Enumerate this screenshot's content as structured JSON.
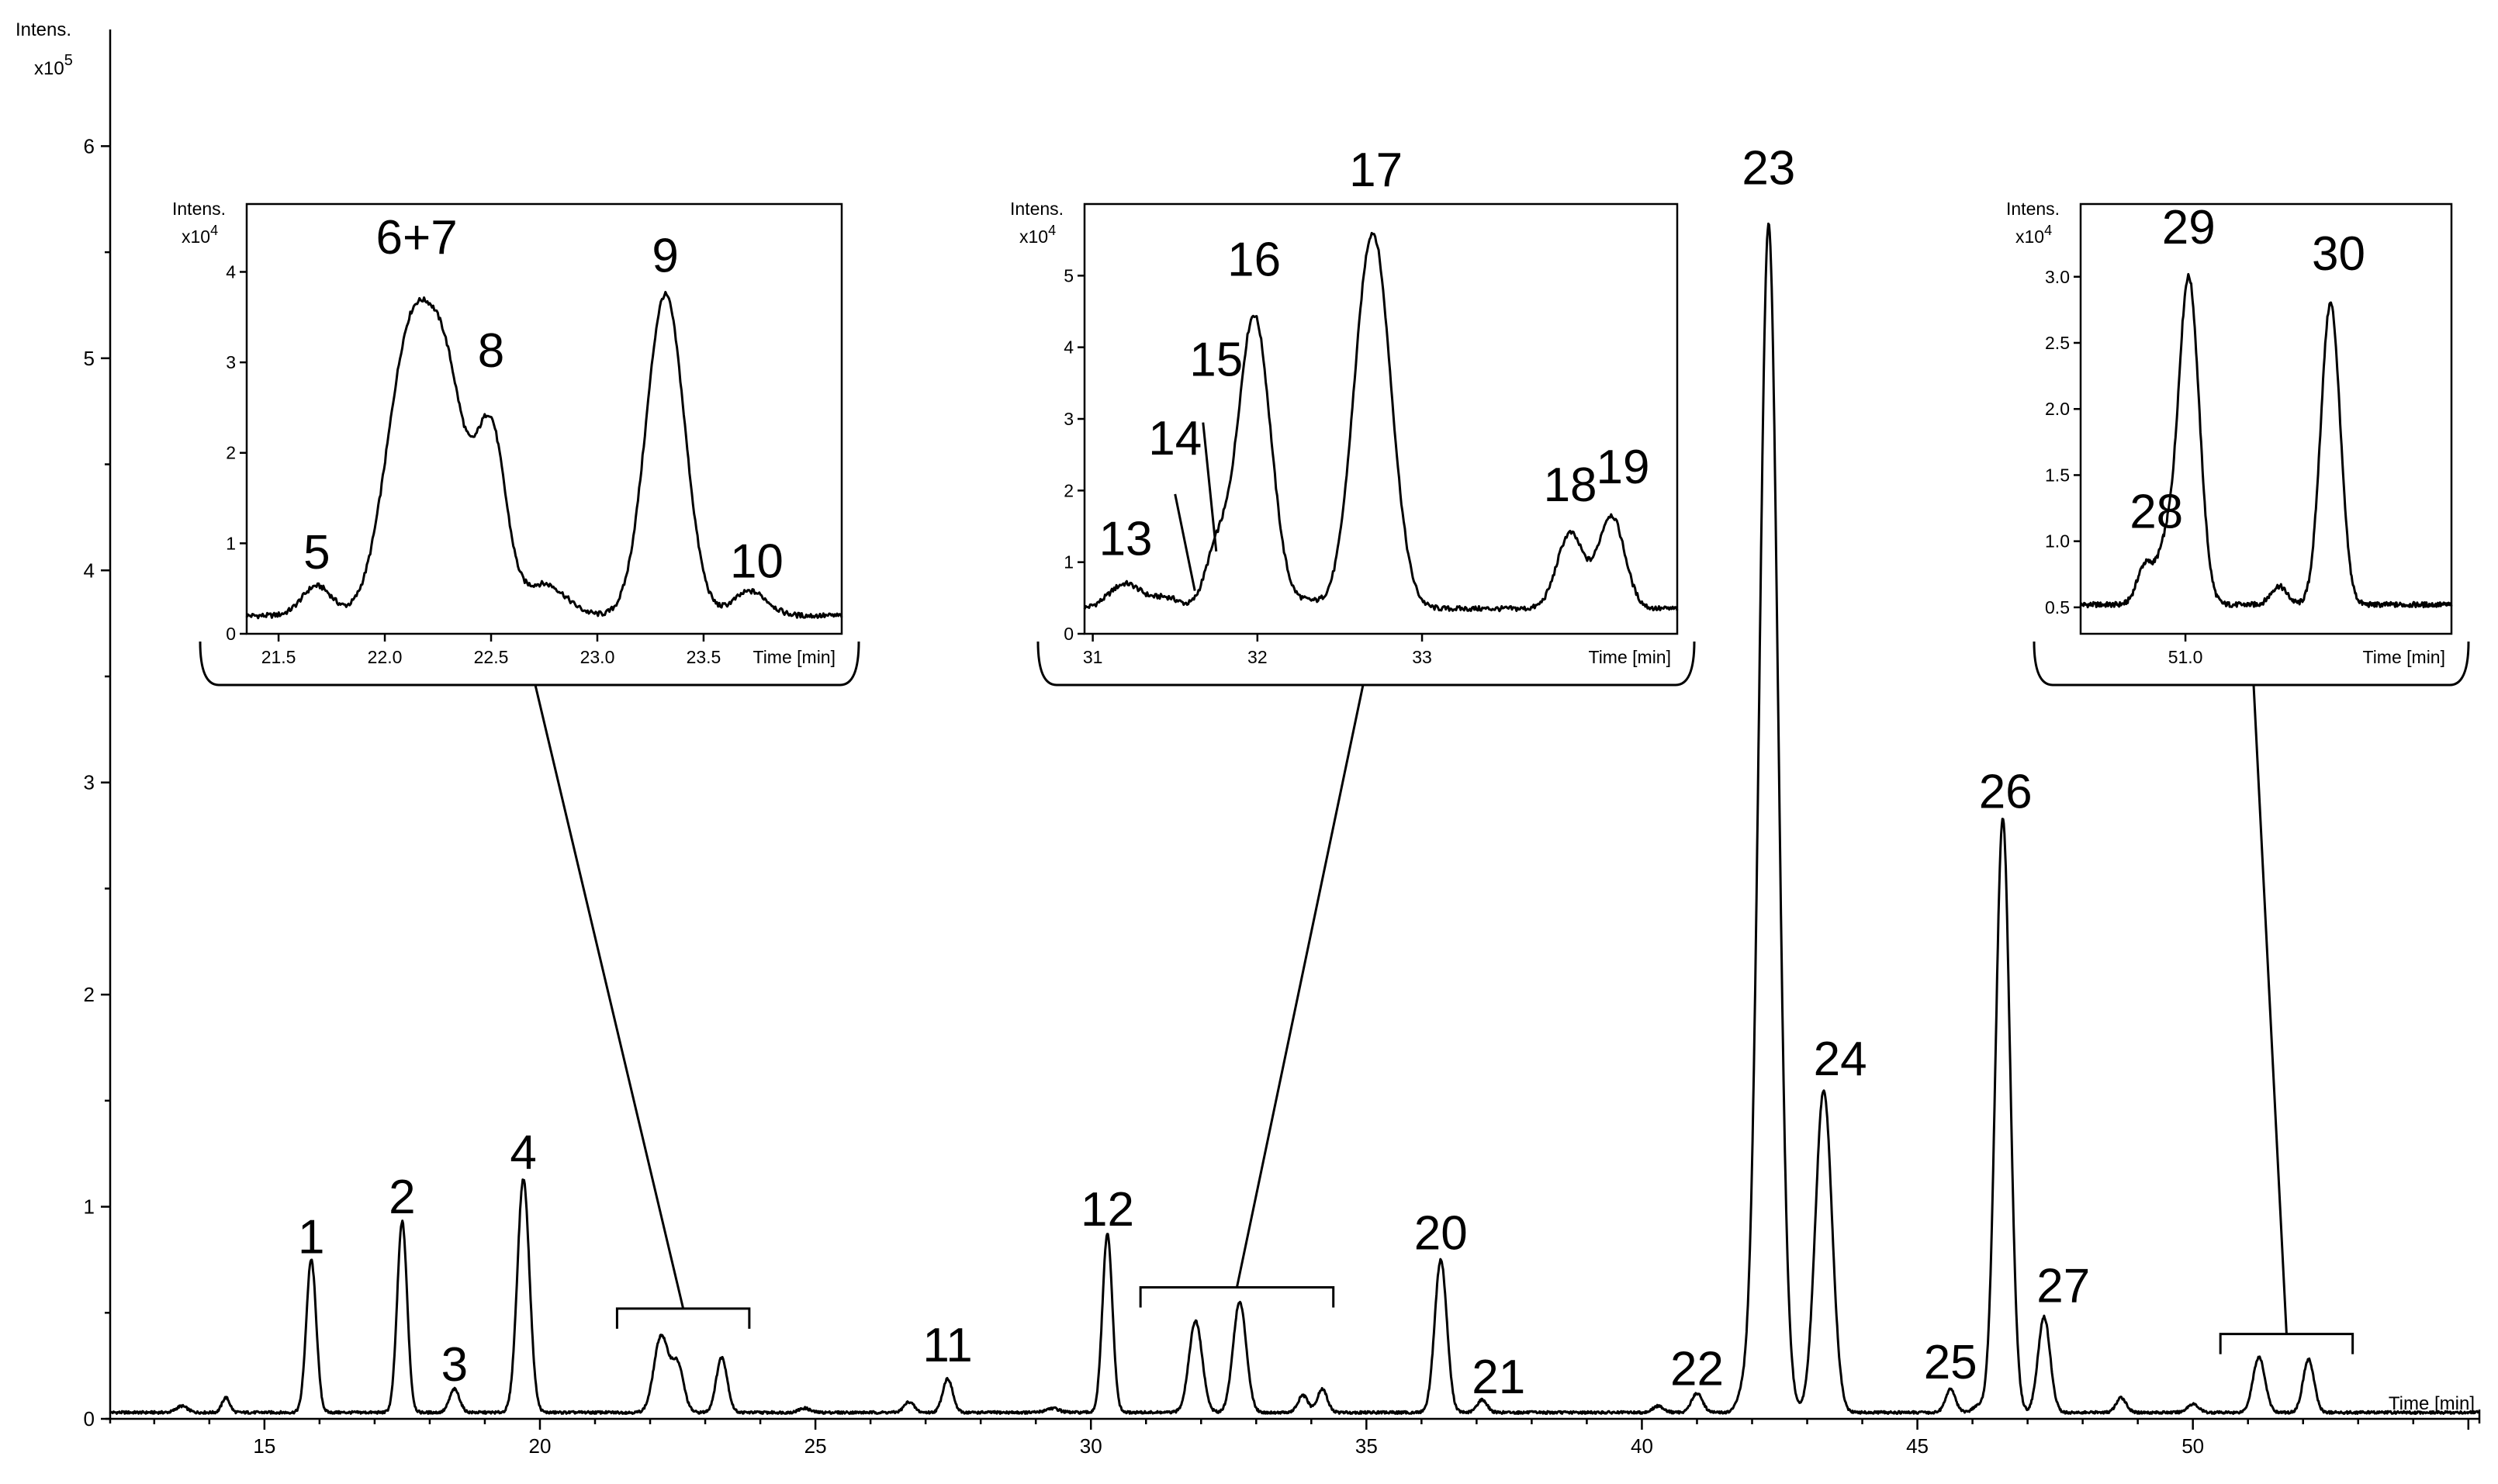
{
  "chart_data": {
    "type": "line",
    "main": {
      "ylabel": "Intens.",
      "yscale": "x10",
      "yscale_exp": "5",
      "xlabel": "Time [min]",
      "xlim": [
        12.2,
        55.2
      ],
      "ylim": [
        0,
        6.55
      ],
      "xticks": [
        "15",
        "20",
        "25",
        "30",
        "35",
        "40",
        "45",
        "50"
      ],
      "yticks": [
        "0",
        "1",
        "2",
        "3",
        "4",
        "5",
        "6"
      ],
      "baseline": 0.03,
      "peaks": [
        {
          "t": 13.5,
          "h": 0.03,
          "w": 0.1
        },
        {
          "t": 14.3,
          "h": 0.07,
          "w": 0.07
        },
        {
          "t": 15.85,
          "h": 0.72,
          "w": 0.09
        },
        {
          "t": 17.5,
          "h": 0.9,
          "w": 0.09
        },
        {
          "t": 18.45,
          "h": 0.11,
          "w": 0.09
        },
        {
          "t": 19.7,
          "h": 1.1,
          "w": 0.11
        },
        {
          "t": 22.2,
          "h": 0.36,
          "w": 0.13
        },
        {
          "t": 22.5,
          "h": 0.22,
          "w": 0.11
        },
        {
          "t": 23.3,
          "h": 0.26,
          "w": 0.1
        },
        {
          "t": 24.8,
          "h": 0.02,
          "w": 0.1
        },
        {
          "t": 26.7,
          "h": 0.05,
          "w": 0.09
        },
        {
          "t": 27.4,
          "h": 0.16,
          "w": 0.09
        },
        {
          "t": 29.3,
          "h": 0.02,
          "w": 0.12
        },
        {
          "t": 30.3,
          "h": 0.84,
          "w": 0.09
        },
        {
          "t": 31.9,
          "h": 0.43,
          "w": 0.12
        },
        {
          "t": 32.7,
          "h": 0.52,
          "w": 0.12
        },
        {
          "t": 33.85,
          "h": 0.08,
          "w": 0.09
        },
        {
          "t": 34.2,
          "h": 0.11,
          "w": 0.09
        },
        {
          "t": 36.35,
          "h": 0.72,
          "w": 0.11
        },
        {
          "t": 37.1,
          "h": 0.06,
          "w": 0.09
        },
        {
          "t": 40.3,
          "h": 0.03,
          "w": 0.1
        },
        {
          "t": 41.0,
          "h": 0.09,
          "w": 0.1
        },
        {
          "t": 41.8,
          "h": 0.06,
          "w": 0.09
        },
        {
          "t": 42.3,
          "h": 5.6,
          "w": 0.17
        },
        {
          "t": 43.3,
          "h": 1.52,
          "w": 0.15
        },
        {
          "t": 45.6,
          "h": 0.11,
          "w": 0.09
        },
        {
          "t": 46.1,
          "h": 0.03,
          "w": 0.1
        },
        {
          "t": 46.55,
          "h": 2.8,
          "w": 0.13
        },
        {
          "t": 47.3,
          "h": 0.45,
          "w": 0.11
        },
        {
          "t": 48.7,
          "h": 0.07,
          "w": 0.09
        },
        {
          "t": 50.0,
          "h": 0.04,
          "w": 0.1
        },
        {
          "t": 51.2,
          "h": 0.26,
          "w": 0.11
        },
        {
          "t": 52.1,
          "h": 0.25,
          "w": 0.1
        }
      ],
      "labels": [
        {
          "text": "1",
          "t": 15.85,
          "y": 0.78
        },
        {
          "text": "2",
          "t": 17.5,
          "y": 0.97
        },
        {
          "text": "3",
          "t": 18.45,
          "y": 0.18
        },
        {
          "text": "4",
          "t": 19.7,
          "y": 1.18
        },
        {
          "text": "11",
          "t": 27.4,
          "y": 0.27
        },
        {
          "text": "12",
          "t": 30.3,
          "y": 0.91
        },
        {
          "text": "20",
          "t": 36.35,
          "y": 0.8
        },
        {
          "text": "21",
          "t": 37.4,
          "y": 0.12
        },
        {
          "text": "22",
          "t": 41.0,
          "y": 0.16
        },
        {
          "text": "23",
          "t": 42.3,
          "y": 5.82
        },
        {
          "text": "24",
          "t": 43.6,
          "y": 1.62
        },
        {
          "text": "25",
          "t": 45.6,
          "y": 0.19
        },
        {
          "text": "26",
          "t": 46.6,
          "y": 2.88
        },
        {
          "text": "27",
          "t": 47.65,
          "y": 0.55
        }
      ],
      "brackets": [
        {
          "t1": 21.4,
          "t2": 23.8,
          "y": 0.52
        },
        {
          "t1": 30.9,
          "t2": 34.4,
          "y": 0.62
        },
        {
          "t1": 50.5,
          "t2": 52.9,
          "y": 0.4
        }
      ]
    },
    "insets": [
      {
        "ylabel": "Intens.",
        "yscale": "x10",
        "yscale_exp": "4",
        "xlabel": "Time [min]",
        "xlim": [
          21.35,
          24.15
        ],
        "ylim": [
          0,
          4.75
        ],
        "xticks": [
          {
            "v": 21.5,
            "l": "21.5"
          },
          {
            "v": 22.0,
            "l": "22.0"
          },
          {
            "v": 22.5,
            "l": "22.5"
          },
          {
            "v": 23.0,
            "l": "23.0"
          },
          {
            "v": 23.5,
            "l": "23.5"
          }
        ],
        "yticks": [
          {
            "v": 0,
            "l": "0"
          },
          {
            "v": 1,
            "l": "1"
          },
          {
            "v": 2,
            "l": "2"
          },
          {
            "v": 3,
            "l": "3"
          },
          {
            "v": 4,
            "l": "4"
          }
        ],
        "baseline": 0.2,
        "peaks": [
          {
            "t": 21.68,
            "h": 0.33,
            "w": 0.07
          },
          {
            "t": 22.12,
            "h": 3.05,
            "w": 0.11
          },
          {
            "t": 22.3,
            "h": 2.1,
            "w": 0.09
          },
          {
            "t": 22.5,
            "h": 2.0,
            "w": 0.07
          },
          {
            "t": 22.75,
            "h": 0.35,
            "w": 0.1
          },
          {
            "t": 23.32,
            "h": 3.55,
            "w": 0.09
          },
          {
            "t": 23.72,
            "h": 0.27,
            "w": 0.08
          }
        ],
        "labels": [
          {
            "text": "5",
            "t": 21.68,
            "y": 0.72
          },
          {
            "text": "6+7",
            "t": 22.15,
            "y": 4.2
          },
          {
            "text": "8",
            "t": 22.5,
            "y": 2.95
          },
          {
            "text": "9",
            "t": 23.32,
            "y": 4.0
          },
          {
            "text": "10",
            "t": 23.75,
            "y": 0.62
          }
        ]
      },
      {
        "ylabel": "Intens.",
        "yscale": "x10",
        "yscale_exp": "4",
        "xlabel": "Time [min]",
        "xlim": [
          30.95,
          34.55
        ],
        "ylim": [
          0,
          6.0
        ],
        "xticks": [
          {
            "v": 31,
            "l": "31"
          },
          {
            "v": 32,
            "l": "32"
          },
          {
            "v": 33,
            "l": "33"
          }
        ],
        "yticks": [
          {
            "v": 0,
            "l": "0"
          },
          {
            "v": 1,
            "l": "1"
          },
          {
            "v": 2,
            "l": "2"
          },
          {
            "v": 3,
            "l": "3"
          },
          {
            "v": 4,
            "l": "4"
          },
          {
            "v": 5,
            "l": "5"
          }
        ],
        "baseline": 0.35,
        "peaks": [
          {
            "t": 31.2,
            "h": 0.35,
            "w": 0.1
          },
          {
            "t": 31.45,
            "h": 0.15,
            "w": 0.08
          },
          {
            "t": 31.75,
            "h": 0.75,
            "w": 0.07
          },
          {
            "t": 31.98,
            "h": 4.1,
            "w": 0.1
          },
          {
            "t": 32.3,
            "h": 0.1,
            "w": 0.08
          },
          {
            "t": 32.7,
            "h": 5.25,
            "w": 0.11
          },
          {
            "t": 33.9,
            "h": 1.05,
            "w": 0.08
          },
          {
            "t": 34.15,
            "h": 1.3,
            "w": 0.08
          }
        ],
        "labels": [
          {
            "text": "13",
            "t": 31.2,
            "y": 1.1
          },
          {
            "text": "14",
            "t": 31.5,
            "y": 2.5
          },
          {
            "text": "15",
            "t": 31.75,
            "y": 3.6
          },
          {
            "text": "16",
            "t": 31.98,
            "y": 5.0
          },
          {
            "text": "17",
            "t": 32.72,
            "y": 6.25
          },
          {
            "text": "18",
            "t": 33.9,
            "y": 1.85
          },
          {
            "text": "19",
            "t": 34.22,
            "y": 2.1
          }
        ],
        "leaders": [
          {
            "t1": 31.5,
            "y1": 1.95,
            "t2": 31.62,
            "y2": 0.6
          },
          {
            "t1": 31.67,
            "y1": 2.95,
            "t2": 31.75,
            "y2": 1.15
          }
        ]
      },
      {
        "ylabel": "Intens.",
        "yscale": "x10",
        "yscale_exp": "4",
        "xlabel": "Time [min]",
        "xlim": [
          50.35,
          52.65
        ],
        "ylim": [
          0.3,
          3.55
        ],
        "xticks": [
          {
            "v": 51.0,
            "l": "51.0"
          }
        ],
        "yticks": [
          {
            "v": 0.5,
            "l": "0.5"
          },
          {
            "v": 1.0,
            "l": "1.0"
          },
          {
            "v": 1.5,
            "l": "1.5"
          },
          {
            "v": 2.0,
            "l": "2.0"
          },
          {
            "v": 2.5,
            "l": "2.5"
          },
          {
            "v": 3.0,
            "l": "3.0"
          }
        ],
        "baseline": 0.52,
        "peaks": [
          {
            "t": 50.75,
            "h": 0.3,
            "w": 0.05
          },
          {
            "t": 50.87,
            "h": 0.36,
            "w": 0.05
          },
          {
            "t": 51.02,
            "h": 2.48,
            "w": 0.065
          },
          {
            "t": 51.58,
            "h": 0.14,
            "w": 0.05
          },
          {
            "t": 51.9,
            "h": 2.28,
            "w": 0.06
          }
        ],
        "labels": [
          {
            "text": "28",
            "t": 50.82,
            "y": 1.1
          },
          {
            "text": "29",
            "t": 51.02,
            "y": 3.25
          },
          {
            "text": "30",
            "t": 51.95,
            "y": 3.05
          }
        ]
      }
    ]
  }
}
